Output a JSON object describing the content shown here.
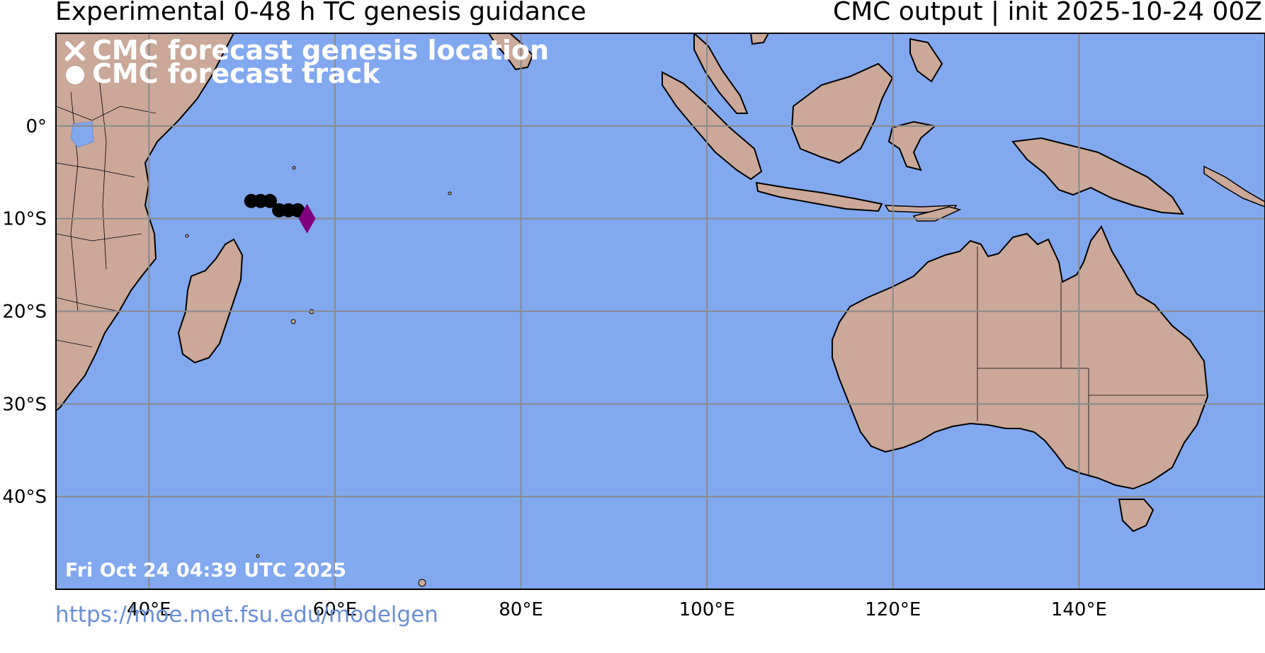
{
  "header": {
    "title_left": "Experimental 0-48 h TC genesis guidance",
    "title_right": "CMC output | init 2025-10-24 00Z"
  },
  "map": {
    "region": "Indian Ocean and Maritime Continent",
    "lon_range": [
      30,
      160
    ],
    "lat_range": [
      -50,
      10
    ],
    "ocean_color": "#82a8f0",
    "land_color": "#cba898",
    "grid_color": "#8a8a8a",
    "lon_ticks": [
      {
        "lon": 40,
        "label": "40°E"
      },
      {
        "lon": 60,
        "label": "60°E"
      },
      {
        "lon": 80,
        "label": "80°E"
      },
      {
        "lon": 100,
        "label": "100°E"
      },
      {
        "lon": 120,
        "label": "120°E"
      },
      {
        "lon": 140,
        "label": "140°E"
      }
    ],
    "lat_ticks": [
      {
        "lat": 0,
        "label": "0°"
      },
      {
        "lat": -10,
        "label": "10°S"
      },
      {
        "lat": -20,
        "label": "20°S"
      },
      {
        "lat": -30,
        "label": "30°S"
      },
      {
        "lat": -40,
        "label": "40°S"
      }
    ],
    "legend": {
      "genesis_label": "CMC forecast genesis location",
      "track_label": "CMC forecast track",
      "genesis_icon": "x-mark-icon",
      "track_icon": "filled-circle-icon"
    },
    "timestamp": "Fri Oct 24 04:39 UTC 2025",
    "track_points": [
      {
        "lon": 51.0,
        "lat": -8.1
      },
      {
        "lon": 52.0,
        "lat": -8.1
      },
      {
        "lon": 53.0,
        "lat": -8.1
      },
      {
        "lon": 54.0,
        "lat": -9.1
      },
      {
        "lon": 55.0,
        "lat": -9.1
      },
      {
        "lon": 56.0,
        "lat": -9.1
      }
    ],
    "genesis_marker": {
      "lon": 57.0,
      "lat": -10.0,
      "shape": "diamond",
      "color": "#800080"
    }
  },
  "footer": {
    "link": "https://moe.met.fsu.edu/modelgen"
  }
}
